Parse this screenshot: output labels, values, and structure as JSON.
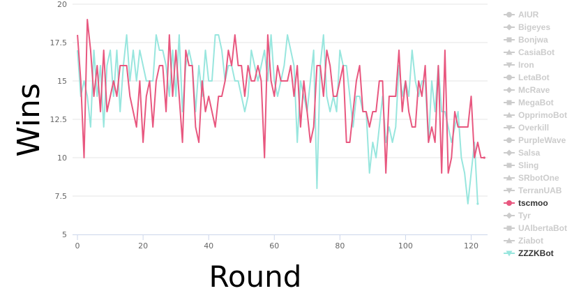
{
  "chart_data": {
    "type": "line",
    "xlabel": "Round",
    "ylabel": "Wins",
    "xlim": [
      -1.5,
      125
    ],
    "ylim": [
      5,
      20
    ],
    "x_ticks": [
      0,
      20,
      40,
      60,
      80,
      100,
      120
    ],
    "y_ticks": [
      "5",
      "7.5",
      "10",
      "12.5",
      "15",
      "17.5",
      "20"
    ],
    "grid": "horizontal",
    "legend_position": "right",
    "legend": [
      {
        "name": "AIUR",
        "marker": "circle",
        "active": false
      },
      {
        "name": "Bigeyes",
        "marker": "diamond",
        "active": false
      },
      {
        "name": "Bonjwa",
        "marker": "square",
        "active": false
      },
      {
        "name": "CasiaBot",
        "marker": "triangle",
        "active": false
      },
      {
        "name": "Iron",
        "marker": "triangle-down",
        "active": false
      },
      {
        "name": "LetaBot",
        "marker": "circle",
        "active": false
      },
      {
        "name": "McRave",
        "marker": "diamond",
        "active": false
      },
      {
        "name": "MegaBot",
        "marker": "square",
        "active": false
      },
      {
        "name": "OpprimoBot",
        "marker": "triangle",
        "active": false
      },
      {
        "name": "Overkill",
        "marker": "triangle-down",
        "active": false
      },
      {
        "name": "PurpleWave",
        "marker": "circle",
        "active": false
      },
      {
        "name": "Salsa",
        "marker": "diamond",
        "active": false
      },
      {
        "name": "Sling",
        "marker": "square",
        "active": false
      },
      {
        "name": "SRbotOne",
        "marker": "triangle",
        "active": false
      },
      {
        "name": "TerranUAB",
        "marker": "triangle-down",
        "active": false
      },
      {
        "name": "tscmoo",
        "marker": "circle",
        "active": true,
        "color": "#e8577f"
      },
      {
        "name": "Tyr",
        "marker": "diamond",
        "active": false
      },
      {
        "name": "UAlbertaBot",
        "marker": "square",
        "active": false
      },
      {
        "name": "Ziabot",
        "marker": "triangle",
        "active": false
      },
      {
        "name": "ZZZKBot",
        "marker": "triangle-down",
        "active": true,
        "color": "#98e6de"
      }
    ],
    "colors": {
      "inactive": "#cccccc",
      "active_text": "#333333",
      "grid": "#e6e6e6",
      "axis": "#ccd6eb"
    },
    "series": [
      {
        "name": "tscmoo",
        "color": "#e8577f",
        "values": [
          18,
          15,
          10,
          19,
          17,
          14,
          16,
          13,
          17,
          13,
          14,
          15,
          14,
          16,
          16,
          16,
          14,
          13,
          12,
          15,
          11,
          14,
          15,
          12,
          15,
          16,
          16,
          13,
          18,
          14,
          17,
          14,
          11,
          17,
          16,
          16,
          12,
          11,
          15,
          13,
          14,
          13,
          12,
          14,
          14,
          15,
          17,
          16,
          18,
          16,
          16,
          14,
          16,
          15,
          15,
          16,
          15,
          10,
          18,
          15,
          14,
          16,
          15,
          15,
          15,
          16,
          14,
          16,
          12,
          15,
          13,
          11,
          12,
          16,
          16,
          14,
          17,
          16,
          14,
          14,
          15,
          16,
          11,
          11,
          13,
          15,
          16,
          13,
          13,
          12,
          13,
          13,
          15,
          15,
          9,
          14,
          14,
          14,
          17,
          13,
          15,
          13,
          12,
          12,
          15,
          14,
          16,
          11,
          12,
          11,
          16,
          9,
          17,
          9,
          10,
          13,
          12,
          12,
          12,
          12,
          14,
          10,
          11,
          10,
          10
        ]
      },
      {
        "name": "ZZZKBot",
        "color": "#98e6de",
        "values": [
          17,
          14,
          15,
          14,
          12,
          17,
          14,
          16,
          12,
          16,
          17,
          14,
          17,
          13,
          16,
          18,
          15,
          17,
          15,
          17,
          16,
          15,
          15,
          15,
          18,
          17,
          17,
          16,
          14,
          17,
          14,
          18,
          13,
          16,
          17,
          16,
          13,
          16,
          14,
          17,
          15,
          15,
          18,
          18,
          17,
          15,
          16,
          16,
          15,
          15,
          14,
          13,
          14,
          17,
          16,
          15,
          16,
          17,
          15,
          18,
          15,
          14,
          15,
          16,
          18,
          17,
          16,
          11,
          15,
          14,
          13,
          15,
          17,
          8,
          16,
          18,
          14,
          13,
          14,
          13,
          17,
          16,
          16,
          14,
          12,
          14,
          14,
          13,
          13,
          9,
          11,
          10,
          12,
          14,
          11,
          12,
          11,
          12,
          16,
          14,
          15,
          14,
          17,
          15,
          14,
          15,
          15,
          11,
          15,
          13,
          16,
          13,
          13,
          12,
          11,
          12,
          13,
          10,
          9,
          7,
          9,
          11,
          7
        ]
      }
    ]
  }
}
